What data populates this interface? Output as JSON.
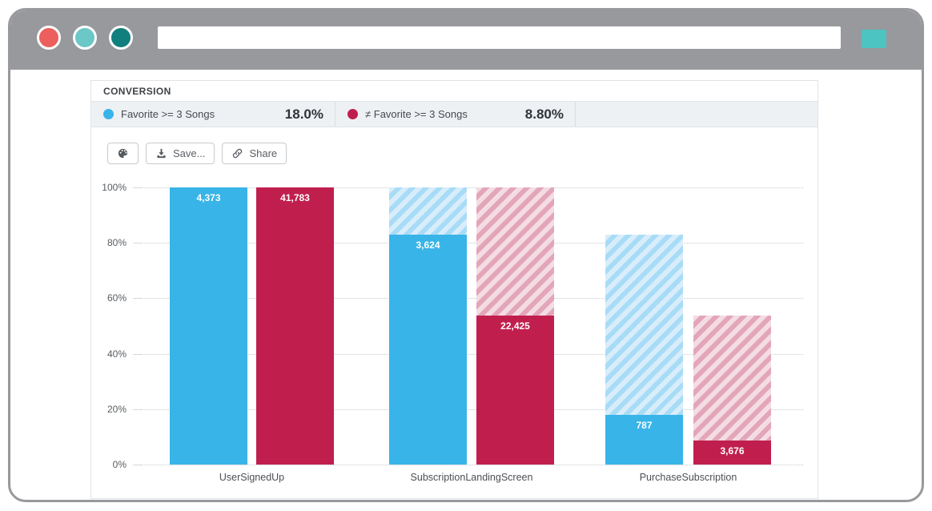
{
  "browser": {
    "chrome_color": "#97999c",
    "window_controls": [
      {
        "name": "close",
        "color": "#ec5f5c"
      },
      {
        "name": "minimize",
        "color": "#6cc7c7"
      },
      {
        "name": "fullscreen",
        "color": "#117f7d"
      }
    ],
    "url_bar": {
      "value": "",
      "placeholder": ""
    },
    "action_button_color": "#4cc4c2"
  },
  "panel": {
    "header": "CONVERSION",
    "legend": [
      {
        "label": "Favorite >= 3 Songs",
        "value": "18.0%",
        "color": "#38b4e8"
      },
      {
        "label": "≠ Favorite >= 3 Songs",
        "value": "8.80%",
        "color": "#c01f4e"
      }
    ],
    "toolbar": {
      "palette_tooltip": "",
      "save_label": "Save...",
      "share_label": "Share"
    }
  },
  "chart_data": {
    "type": "bar",
    "title": "CONVERSION",
    "categories": [
      "UserSignedUp",
      "SubscriptionLandingScreen",
      "PurchaseSubscription"
    ],
    "series": [
      {
        "name": "Favorite >= 3 Songs",
        "color": "#38b4e8",
        "hatch_bg": "#d8edfb",
        "hatch_stripe": "#a8dcf6",
        "counts": [
          4373,
          3624,
          787
        ],
        "count_labels": [
          "4,373",
          "3,624",
          "787"
        ],
        "percent_of_first": [
          100,
          82.87,
          18.0
        ]
      },
      {
        "name": "≠ Favorite >= 3 Songs",
        "color": "#c01f4e",
        "hatch_bg": "#f4dce4",
        "hatch_stripe": "#e3a6b9",
        "counts": [
          41783,
          22425,
          3676
        ],
        "count_labels": [
          "41,783",
          "22,425",
          "3,676"
        ],
        "percent_of_first": [
          100,
          53.67,
          8.8
        ]
      }
    ],
    "overall_conversion": [
      "18.0%",
      "8.80%"
    ],
    "yticks": [
      "100%",
      "80%",
      "60%",
      "40%",
      "20%",
      "0%"
    ],
    "ylim": [
      0,
      100
    ],
    "grid": "horizontal-dotted",
    "legend_position": "top"
  }
}
